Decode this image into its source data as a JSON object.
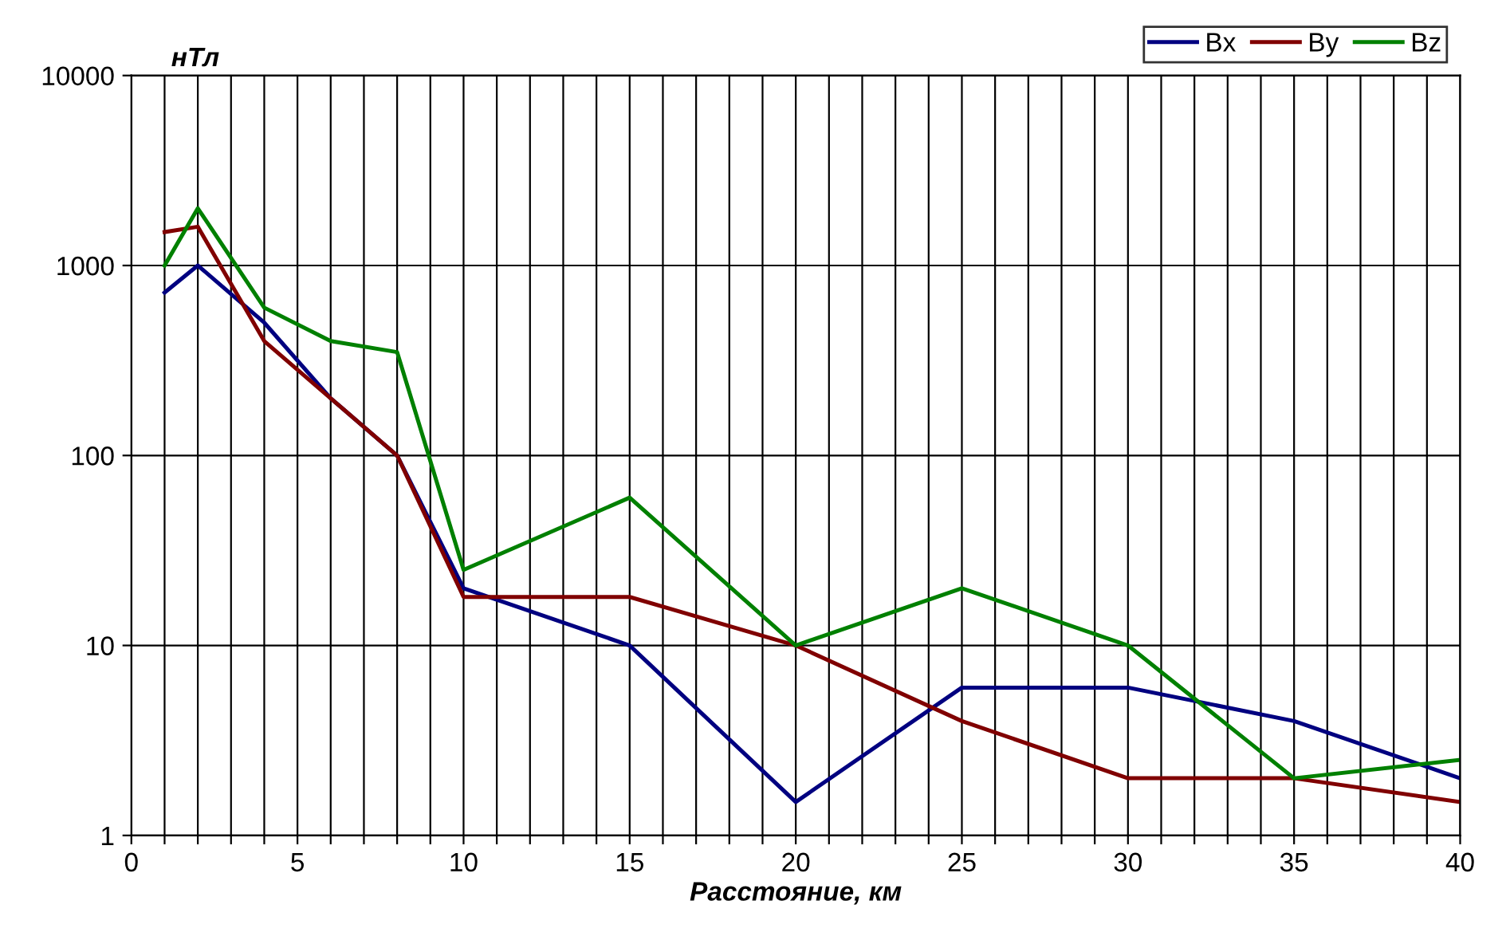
{
  "chart_data": {
    "type": "line",
    "xlabel": "Расстояние, км",
    "ylabel": "нТл",
    "x": [
      1,
      2,
      4,
      6,
      8,
      10,
      15,
      20,
      25,
      30,
      35,
      40
    ],
    "series": [
      {
        "name": "Bx",
        "color": "#000080",
        "values": [
          720,
          1000,
          500,
          200,
          100,
          20,
          10,
          1.5,
          6,
          6,
          4,
          2
        ]
      },
      {
        "name": "By",
        "color": "#800000",
        "values": [
          1500,
          1600,
          400,
          200,
          100,
          18,
          18,
          10,
          4,
          2,
          2,
          1.5
        ]
      },
      {
        "name": "Bz",
        "color": "#008000",
        "values": [
          1000,
          2000,
          600,
          400,
          350,
          25,
          60,
          10,
          20,
          10,
          2,
          2.5
        ]
      }
    ],
    "log": true,
    "xlim": [
      0,
      40
    ],
    "ylim": [
      1,
      10000
    ],
    "xticks": [
      0,
      {
        "value": 1,
        "label": null
      },
      {
        "value": 2,
        "label": null
      },
      {
        "value": 3,
        "label": null
      },
      {
        "value": 4,
        "label": null
      },
      5,
      {
        "value": 6,
        "label": null
      },
      {
        "value": 7,
        "label": null
      },
      {
        "value": 8,
        "label": null
      },
      {
        "value": 9,
        "label": null
      },
      10,
      {
        "value": 11,
        "label": null
      },
      {
        "value": 12,
        "label": null
      },
      {
        "value": 13,
        "label": null
      },
      {
        "value": 14,
        "label": null
      },
      15,
      {
        "value": 16,
        "label": null
      },
      {
        "value": 17,
        "label": null
      },
      {
        "value": 18,
        "label": null
      },
      {
        "value": 19,
        "label": null
      },
      20,
      {
        "value": 21,
        "label": null
      },
      {
        "value": 22,
        "label": null
      },
      {
        "value": 23,
        "label": null
      },
      {
        "value": 24,
        "label": null
      },
      25,
      {
        "value": 26,
        "label": null
      },
      {
        "value": 27,
        "label": null
      },
      {
        "value": 28,
        "label": null
      },
      {
        "value": 29,
        "label": null
      },
      30,
      {
        "value": 31,
        "label": null
      },
      {
        "value": 32,
        "label": null
      },
      {
        "value": 33,
        "label": null
      },
      {
        "value": 34,
        "label": null
      },
      35,
      {
        "value": 36,
        "label": null
      },
      {
        "value": 37,
        "label": null
      },
      {
        "value": 38,
        "label": null
      },
      {
        "value": 39,
        "label": null
      },
      40
    ],
    "yticks": [
      1,
      10,
      100,
      1000,
      10000
    ],
    "grid": true,
    "legend": "top right",
    "marker": "none",
    "line_style": "solid"
  }
}
